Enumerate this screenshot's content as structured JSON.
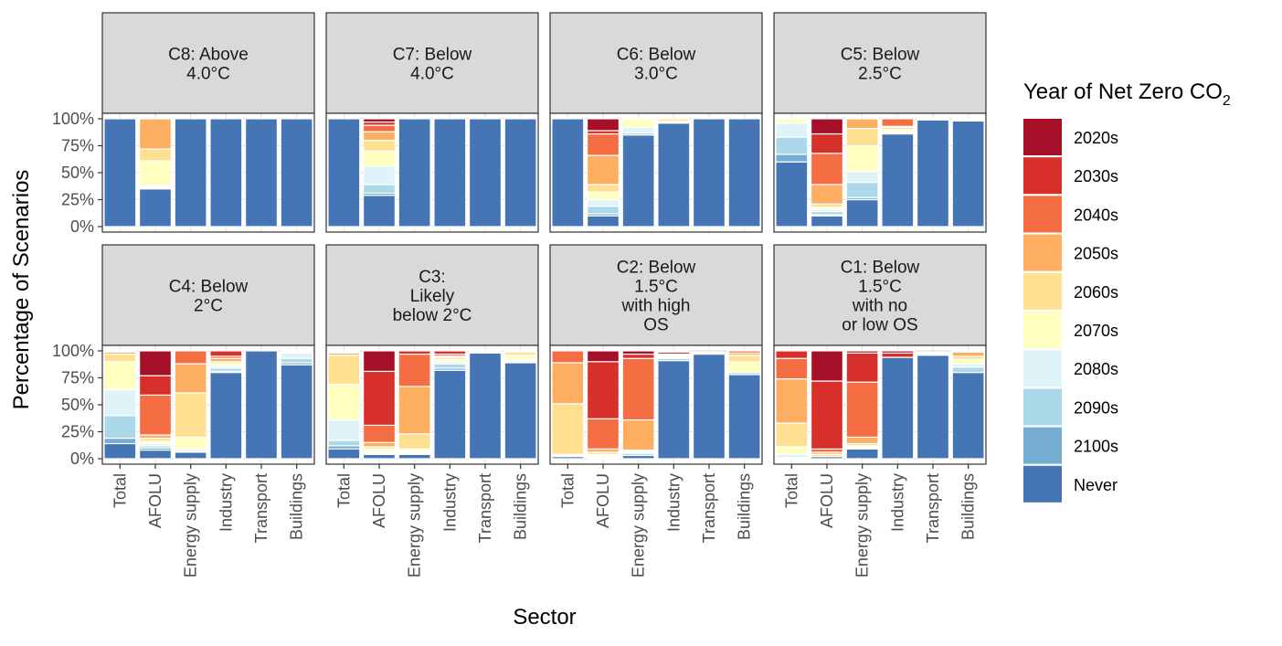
{
  "chart_data": {
    "type": "bar",
    "stacked": true,
    "xlabel": "Sector",
    "ylabel": "Percentage of Scenarios",
    "ylim": [
      0,
      100
    ],
    "yticks": [
      0,
      25,
      50,
      75,
      100
    ],
    "ytick_labels": [
      "0%",
      "25%",
      "50%",
      "75%",
      "100%"
    ],
    "categories": [
      "Total",
      "AFOLU",
      "Energy supply",
      "Industry",
      "Transport",
      "Buildings"
    ],
    "legend": {
      "title_main": "Year of Net Zero CO",
      "title_sub": "2",
      "placement": "right"
    },
    "series_order": [
      "Never",
      "2100s",
      "2090s",
      "2080s",
      "2070s",
      "2060s",
      "2050s",
      "2040s",
      "2030s",
      "2020s"
    ],
    "legend_order": [
      "2020s",
      "2030s",
      "2040s",
      "2050s",
      "2060s",
      "2070s",
      "2080s",
      "2090s",
      "2100s",
      "Never"
    ],
    "colors": {
      "2020s": "#a50f28",
      "2030s": "#d7302a",
      "2040s": "#f46d43",
      "2050s": "#fdae61",
      "2060s": "#fee090",
      "2070s": "#ffffbf",
      "2080s": "#e0f3f8",
      "2090s": "#abd9e9",
      "2100s": "#74add1",
      "Never": "#4575b4"
    },
    "panels": [
      {
        "title": [
          "C8: Above",
          "4.0°C"
        ],
        "bars": [
          {
            "Never": 100
          },
          {
            "Never": 35,
            "2100s": 1,
            "2090s": 1,
            "2080s": 1,
            "2070s": 23,
            "2060s": 11,
            "2050s": 28
          },
          {
            "Never": 100
          },
          {
            "Never": 100
          },
          {
            "Never": 100
          },
          {
            "Never": 100
          }
        ]
      },
      {
        "title": [
          "C7: Below",
          "4.0°C"
        ],
        "bars": [
          {
            "Never": 100
          },
          {
            "Never": 29,
            "2100s": 2,
            "2090s": 8,
            "2080s": 17,
            "2070s": 14,
            "2060s": 10,
            "2050s": 8,
            "2040s": 6,
            "2030s": 3,
            "2020s": 3
          },
          {
            "Never": 100
          },
          {
            "Never": 100
          },
          {
            "Never": 100
          },
          {
            "Never": 100
          }
        ]
      },
      {
        "title": [
          "C6: Below",
          "3.0°C"
        ],
        "bars": [
          {
            "Never": 100
          },
          {
            "Never": 10,
            "2100s": 2,
            "2090s": 7,
            "2080s": 6,
            "2070s": 7,
            "2060s": 7,
            "2050s": 27,
            "2040s": 20,
            "2030s": 3,
            "2020s": 11
          },
          {
            "Never": 85,
            "2090s": 2,
            "2080s": 5,
            "2070s": 8
          },
          {
            "Never": 96,
            "2070s": 2,
            "2060s": 2
          },
          {
            "Never": 100
          },
          {
            "Never": 100
          }
        ]
      },
      {
        "title": [
          "C5: Below",
          "2.5°C"
        ],
        "bars": [
          {
            "Never": 60,
            "2100s": 7,
            "2090s": 16,
            "2080s": 13,
            "2070s": 4
          },
          {
            "Never": 10,
            "2100s": 1,
            "2090s": 3,
            "2080s": 2,
            "2070s": 2,
            "2060s": 3,
            "2050s": 18,
            "2040s": 29,
            "2030s": 18,
            "2020s": 14
          },
          {
            "Never": 25,
            "2100s": 2,
            "2090s": 14,
            "2080s": 10,
            "2070s": 24,
            "2060s": 16,
            "2050s": 9
          },
          {
            "Never": 86,
            "2090s": 1,
            "2080s": 1,
            "2070s": 2,
            "2060s": 2,
            "2050s": 1,
            "2040s": 7
          },
          {
            "Never": 99,
            "2080s": 1
          },
          {
            "Never": 98,
            "2080s": 1,
            "2060s": 1
          }
        ]
      },
      {
        "title": [
          "C4: Below",
          "2°C"
        ],
        "bars": [
          {
            "Never": 14,
            "2100s": 5,
            "2090s": 21,
            "2080s": 24,
            "2070s": 26,
            "2060s": 7,
            "2050s": 2,
            "2040s": 1
          },
          {
            "Never": 8,
            "2100s": 2,
            "2090s": 2,
            "2080s": 2,
            "2070s": 2,
            "2060s": 3,
            "2050s": 3,
            "2040s": 37,
            "2030s": 18,
            "2020s": 23
          },
          {
            "Never": 6,
            "2100s": 1,
            "2080s": 2,
            "2070s": 11,
            "2060s": 41,
            "2050s": 27,
            "2040s": 12
          },
          {
            "Never": 80,
            "2100s": 1,
            "2090s": 3,
            "2080s": 2,
            "2070s": 2,
            "2060s": 2,
            "2050s": 3,
            "2040s": 2,
            "2030s": 5
          },
          {
            "Never": 100
          },
          {
            "Never": 87,
            "2100s": 2,
            "2090s": 4,
            "2080s": 5,
            "2070s": 1,
            "2060s": 1
          }
        ]
      },
      {
        "title": [
          "C3:",
          "Likely",
          "below 2°C"
        ],
        "bars": [
          {
            "Never": 9,
            "2100s": 3,
            "2090s": 5,
            "2080s": 19,
            "2070s": 33,
            "2060s": 27,
            "2050s": 2,
            "2040s": 1,
            "2030s": 1
          },
          {
            "Never": 4,
            "2100s": 1,
            "2090s": 1,
            "2080s": 1,
            "2070s": 2,
            "2060s": 2,
            "2050s": 4,
            "2040s": 16,
            "2030s": 50,
            "2020s": 19
          },
          {
            "Never": 4,
            "2100s": 1,
            "2090s": 1,
            "2080s": 1,
            "2070s": 2,
            "2060s": 14,
            "2050s": 44,
            "2040s": 30,
            "2030s": 3
          },
          {
            "Never": 82,
            "2100s": 2,
            "2090s": 4,
            "2080s": 2,
            "2070s": 2,
            "2060s": 2,
            "2050s": 1,
            "2040s": 2,
            "2030s": 3
          },
          {
            "Never": 98,
            "2080s": 1,
            "2060s": 1
          },
          {
            "Never": 89,
            "2100s": 1,
            "2090s": 1,
            "2080s": 1,
            "2070s": 4,
            "2060s": 3,
            "2050s": 1
          }
        ]
      },
      {
        "title": [
          "C2: Below",
          "1.5°C",
          "with high",
          "OS"
        ],
        "bars": [
          {
            "Never": 2,
            "2080s": 1,
            "2070s": 1,
            "2060s": 47,
            "2050s": 38,
            "2040s": 11
          },
          {
            "Never": 1,
            "2100s": 1,
            "2090s": 1,
            "2080s": 1,
            "2060s": 2,
            "2050s": 3,
            "2040s": 28,
            "2030s": 53,
            "2020s": 10
          },
          {
            "Never": 3,
            "2090s": 2,
            "2080s": 1,
            "2070s": 1,
            "2060s": 1,
            "2050s": 28,
            "2040s": 57,
            "2030s": 4,
            "2020s": 3
          },
          {
            "Never": 91,
            "2090s": 2,
            "2070s": 1,
            "2060s": 1,
            "2050s": 1,
            "2040s": 1,
            "2030s": 2,
            "2020s": 1
          },
          {
            "Never": 97,
            "2080s": 1
          },
          {
            "Never": 78,
            "2090s": 2,
            "2070s": 10,
            "2060s": 6,
            "2050s": 2,
            "2040s": 2
          }
        ]
      },
      {
        "title": [
          "C1: Below",
          "1.5°C",
          "with no",
          "or low OS"
        ],
        "bars": [
          {
            "Never": 1,
            "2080s": 3,
            "2070s": 7,
            "2060s": 22,
            "2050s": 41,
            "2040s": 19,
            "2030s": 7
          },
          {
            "Never": 2,
            "2060s": 2,
            "2050s": 2,
            "2040s": 3,
            "2030s": 63,
            "2020s": 28
          },
          {
            "Never": 9,
            "2100s": 1,
            "2090s": 1,
            "2070s": 1,
            "2060s": 2,
            "2050s": 6,
            "2040s": 51,
            "2030s": 27,
            "2020s": 2
          },
          {
            "Never": 94,
            "2030s": 4,
            "2020s": 2
          },
          {
            "Never": 96,
            "2080s": 1,
            "2070s": 1
          },
          {
            "Never": 80,
            "2090s": 5,
            "2080s": 3,
            "2070s": 4,
            "2060s": 3,
            "2050s": 4,
            "2040s": 1
          }
        ]
      }
    ]
  }
}
